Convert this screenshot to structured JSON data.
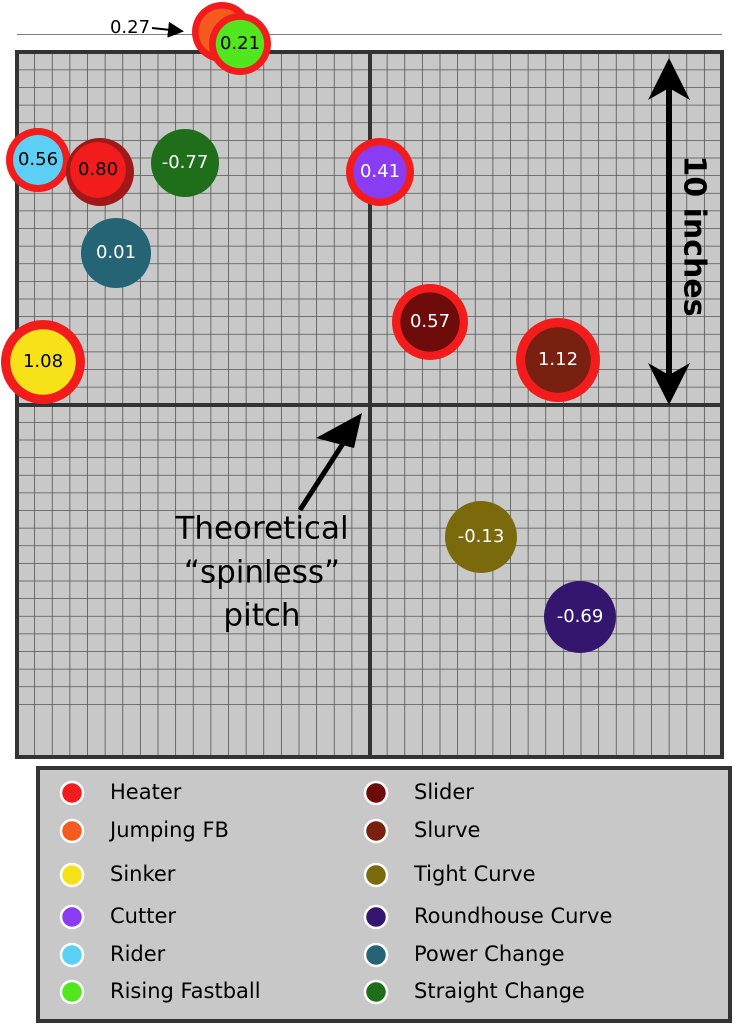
{
  "bubbles": [
    {
      "label": "0.27"
    },
    {
      "label": "0.21"
    },
    {
      "label": "0.56"
    },
    {
      "label": "0.80"
    },
    {
      "label": "-0.77"
    },
    {
      "label": "0.41"
    },
    {
      "label": "0.01"
    },
    {
      "label": "0.57"
    },
    {
      "label": "1.12"
    },
    {
      "label": "1.08"
    },
    {
      "label": "-0.13"
    },
    {
      "label": "-0.69"
    }
  ],
  "annotations": {
    "scale": "10 inches",
    "origin_lines": [
      "Theoretical",
      "“spinless”",
      "pitch"
    ]
  },
  "legend": [
    {
      "name": "Heater",
      "color": "#f21c1c"
    },
    {
      "name": "Jumping FB",
      "color": "#f55a1e"
    },
    {
      "name": "Sinker",
      "color": "#f7e21a"
    },
    {
      "name": "Cutter",
      "color": "#8a3cf2"
    },
    {
      "name": "Rider",
      "color": "#5ccff5"
    },
    {
      "name": "Rising Fastball",
      "color": "#52e61e"
    },
    {
      "name": "Slider",
      "color": "#6e0b0b"
    },
    {
      "name": "Slurve",
      "color": "#7a2010"
    },
    {
      "name": "Tight Curve",
      "color": "#7a6a0c"
    },
    {
      "name": "Roundhouse Curve",
      "color": "#35166e"
    },
    {
      "name": "Power Change",
      "color": "#256475"
    },
    {
      "name": "Straight Change",
      "color": "#1f6e1a"
    }
  ]
}
